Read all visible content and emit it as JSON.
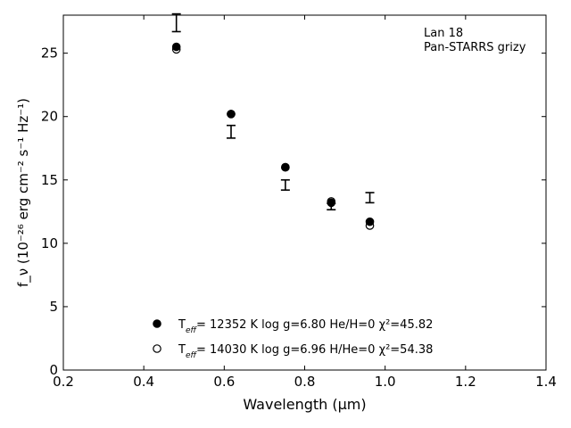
{
  "chart_data": {
    "type": "scatter",
    "title": "",
    "annotation_lines": [
      "Lan 18",
      "Pan-STARRS grizy"
    ],
    "xlabel": "Wavelength (μm)",
    "ylabel": "f_ν (10⁻²⁶ erg cm⁻² s⁻¹ Hz⁻¹)",
    "xlim": [
      0.2,
      1.4
    ],
    "ylim": [
      0,
      28
    ],
    "xticks": [
      0.2,
      0.4,
      0.6,
      0.8,
      1.0,
      1.2,
      1.4
    ],
    "xtick_labels": [
      "0.2",
      "0.4",
      "0.6",
      "0.8",
      "1.0",
      "1.2",
      "1.4"
    ],
    "yticks": [
      0,
      5,
      10,
      15,
      20,
      25
    ],
    "ytick_labels": [
      "0",
      "5",
      "10",
      "15",
      "20",
      "25"
    ],
    "grid": false,
    "legend_position": "bottom-center",
    "observed": {
      "x": [
        0.481,
        0.617,
        0.752,
        0.866,
        0.962
      ],
      "y": [
        27.4,
        18.8,
        14.6,
        12.9,
        13.6
      ],
      "err": [
        0.7,
        0.5,
        0.4,
        0.25,
        0.4
      ]
    },
    "series": [
      {
        "name": "T_eff= 12352 K  log g=6.80  He/H=0  χ²=45.82",
        "marker": "filled-circle",
        "x": [
          0.481,
          0.617,
          0.752,
          0.866,
          0.962
        ],
        "values": [
          25.5,
          20.2,
          16.0,
          13.2,
          11.7
        ]
      },
      {
        "name": "T_eff= 14030 K  log g=6.96  H/He=0  χ²=54.38",
        "marker": "open-circle",
        "x": [
          0.481,
          0.617,
          0.752,
          0.866,
          0.962
        ],
        "values": [
          25.3,
          20.2,
          16.0,
          13.3,
          11.4
        ]
      }
    ]
  }
}
